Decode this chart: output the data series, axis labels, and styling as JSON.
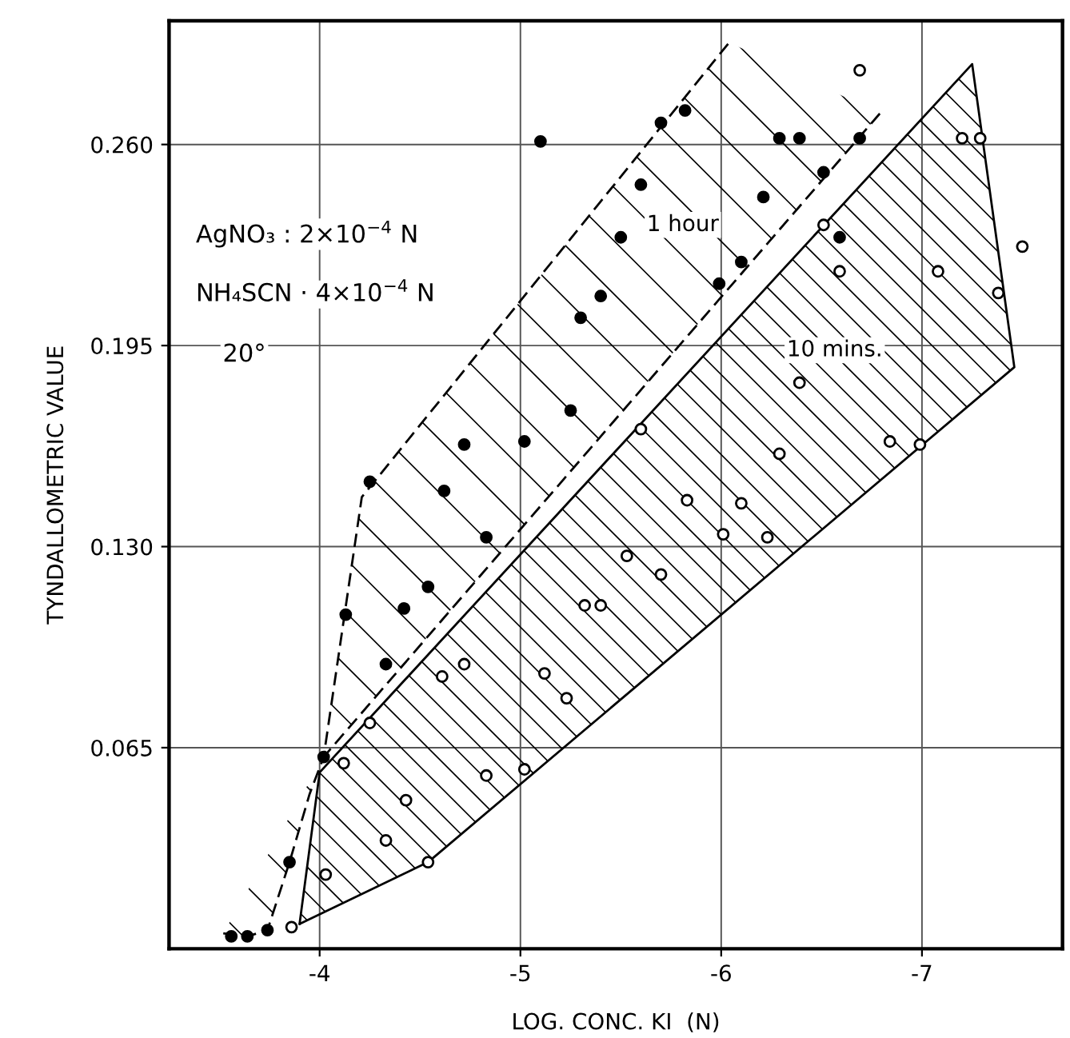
{
  "chart_data": {
    "type": "scatter",
    "xlabel": "LOG. CONC. KI  (N)",
    "ylabel": "TYNDALLOMETRIC VALUE",
    "xlim": [
      -3.25,
      -7.7
    ],
    "ylim": [
      0,
      0.3
    ],
    "xticks": [
      -4,
      -5,
      -6,
      -7
    ],
    "yticks": [
      0.065,
      {
        "value": 0.13,
        "label": "0.130"
      },
      0.195,
      {
        "value": 0.26,
        "label": "0.260"
      }
    ],
    "grid": true,
    "series": [
      {
        "color": "#000000",
        "marker": "circle",
        "x": [
          -3.56,
          -3.64,
          -3.74,
          -3.85,
          -4.02,
          -4.33,
          -4.42,
          -4.13,
          -4.54,
          -4.83,
          -4.62,
          -4.25,
          -4.72,
          -5.02,
          -5.25,
          -5.3,
          -5.4,
          -5.5,
          -5.1,
          -5.6,
          -5.7,
          -5.82,
          -5.99,
          -6.1,
          -6.21,
          -6.29,
          -6.39,
          -6.51,
          -6.59,
          -6.69
        ],
        "values": [
          0.004,
          0.004,
          0.006,
          0.028,
          0.062,
          0.092,
          0.11,
          0.108,
          0.117,
          0.133,
          0.148,
          0.151,
          0.163,
          0.164,
          0.174,
          0.204,
          0.211,
          0.23,
          0.261,
          0.247,
          0.267,
          0.271,
          0.215,
          0.222,
          0.243,
          0.262,
          0.262,
          0.251,
          0.23,
          0.262
        ]
      },
      {
        "color": "#000000",
        "marker": "circle",
        "x": [
          -3.86,
          -4.03,
          -4.33,
          -4.43,
          -4.54,
          -4.12,
          -4.25,
          -4.61,
          -4.72,
          -4.83,
          -5.02,
          -5.12,
          -5.23,
          -5.32,
          -5.4,
          -5.53,
          -5.7,
          -5.6,
          -5.83,
          -6.01,
          -6.1,
          -6.23,
          -6.29,
          -6.39,
          -6.51,
          -6.59,
          -6.69,
          -6.84,
          -6.99,
          -7.08,
          -7.2,
          -7.29,
          -7.38,
          -7.5
        ],
        "values": [
          0.007,
          0.024,
          0.035,
          0.048,
          0.028,
          0.06,
          0.073,
          0.088,
          0.092,
          0.056,
          0.058,
          0.089,
          0.081,
          0.111,
          0.111,
          0.127,
          0.121,
          0.168,
          0.145,
          0.134,
          0.144,
          0.133,
          0.16,
          0.183,
          0.234,
          0.219,
          0.284,
          0.164,
          0.163,
          0.219,
          0.262,
          0.262,
          0.212,
          0.227
        ]
      },
      {
        "type": "area",
        "line_style": "dashed",
        "color": "#000000",
        "x": [
          -3.52,
          -3.64,
          -3.74,
          -3.85,
          -3.95,
          -4.02,
          -4.21,
          -6.04,
          -6.4,
          -6.79,
          -4.02
        ],
        "values": [
          0.005,
          0.004,
          0.006,
          0.028,
          0.05,
          0.062,
          0.146,
          0.293,
          null,
          0.27,
          0.062
        ]
      },
      {
        "type": "area",
        "line_style": "solid",
        "color": "#000000",
        "x": [
          -3.9,
          -4.0,
          -7.25,
          -7.46,
          -4.54,
          -3.9
        ],
        "values": [
          0.008,
          0.057,
          0.286,
          0.188,
          0.028,
          0.008
        ]
      }
    ],
    "annotations": [
      "1 hour",
      "10 mins.",
      "AgNO₃ : 2×10$^{−4}$ N",
      "NH₄SCN · 4×10$^{−4}$ N",
      "20°"
    ]
  }
}
